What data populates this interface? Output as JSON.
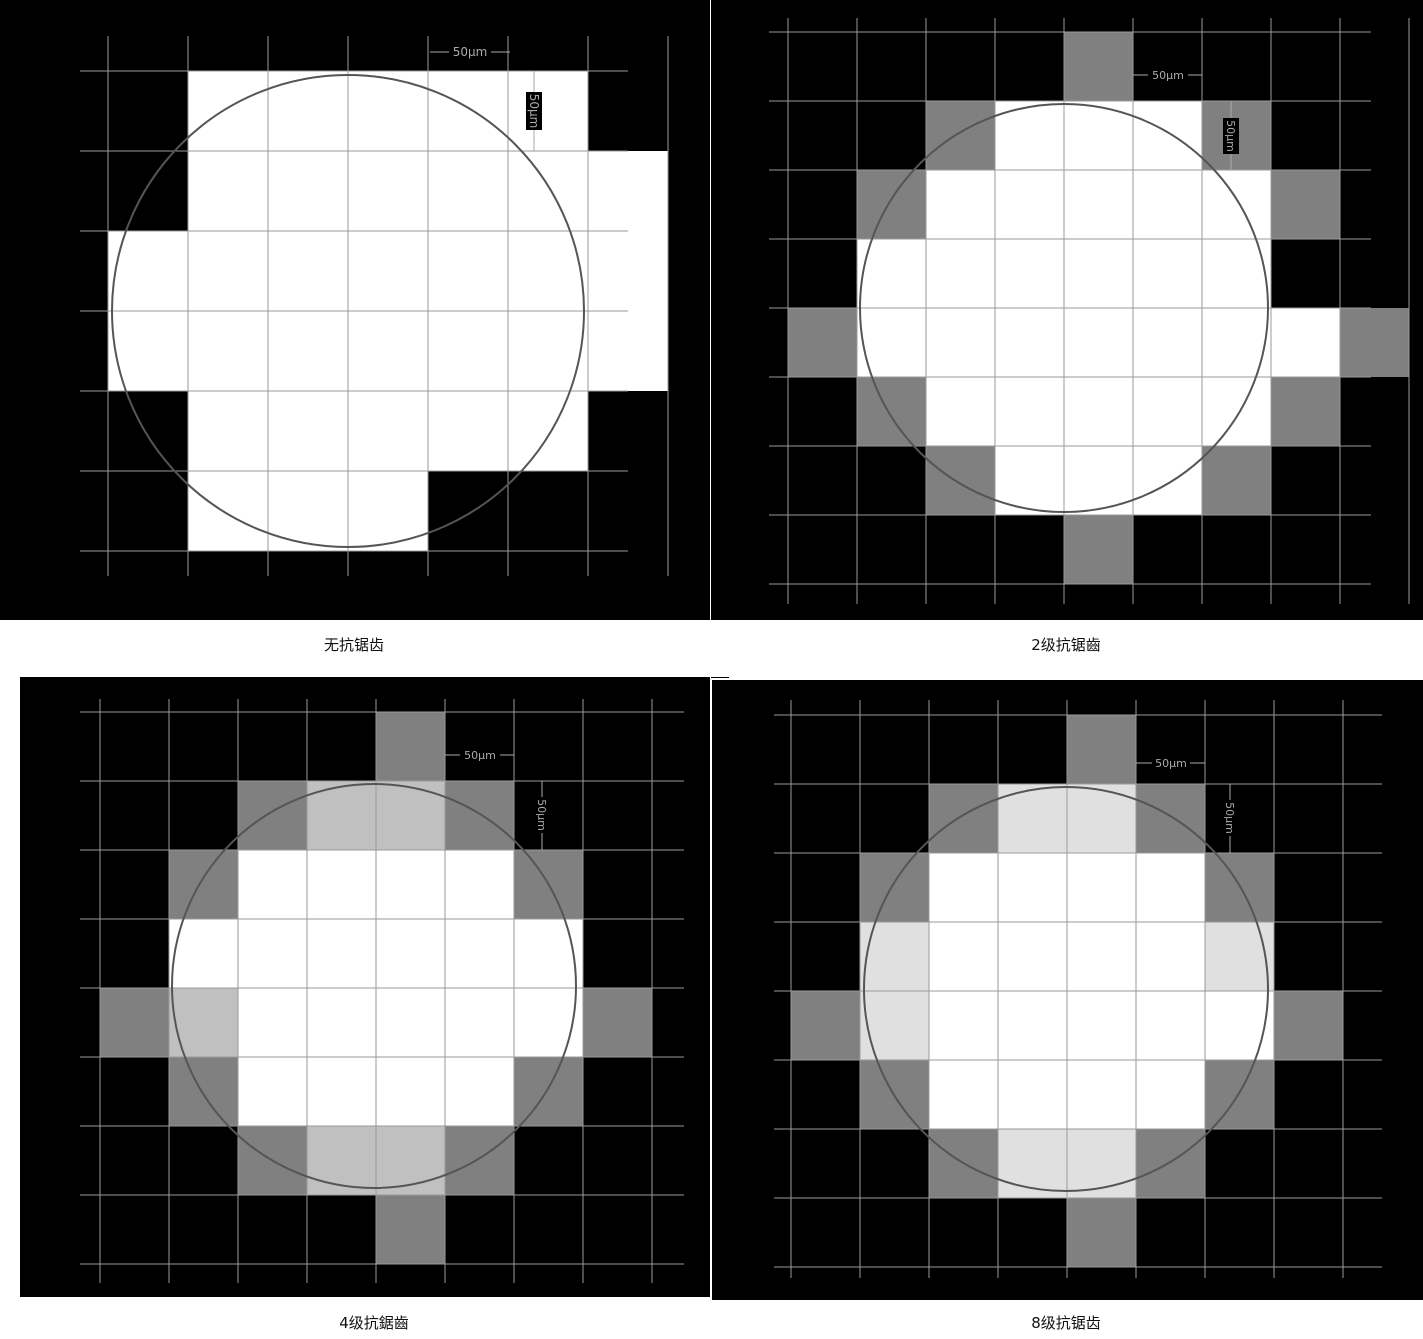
{
  "colors": {
    "background": "#000000",
    "full_coverage": "#ffffff",
    "half_coverage": "#808080",
    "three_quarter_coverage": "#c0c0c0",
    "seven_eighths_coverage": "#e0e0e0",
    "grid_line": "#9a9a9a",
    "circle_outline": "#555555",
    "scale_text": "#aaaaaa"
  },
  "panels": [
    {
      "caption": "无抗锯齿",
      "scale_h": "50μm",
      "scale_v": "50μm",
      "cells": [
        "01111100",
        "01111110",
        "11111110",
        "11111110",
        "01111100",
        "01110000"
      ]
    },
    {
      "caption": "2级抗锯齒",
      "scale_h": "50μm",
      "scale_v": "50μm",
      "cells": [
        "000020000",
        "002111200",
        "021111120",
        "011111100",
        "211111112",
        "021111120",
        "002111200",
        "000020000"
      ]
    },
    {
      "caption": "4级抗鋸齒",
      "scale_h": "50μm",
      "scale_v": "50μm",
      "cells": [
        "00002000",
        "00233200",
        "02111120",
        "01111110",
        "23111112",
        "02111120",
        "00233200",
        "00002000"
      ]
    },
    {
      "caption": "8级抗锯齿",
      "scale_h": "50μm",
      "scale_v": "50μm",
      "cells": [
        "00002000",
        "00244200",
        "02111120",
        "04111140",
        "24111112",
        "02111120",
        "00244200",
        "00002000"
      ]
    }
  ]
}
